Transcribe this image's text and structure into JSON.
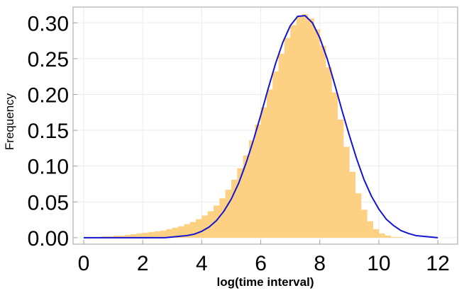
{
  "chart_data": {
    "type": "histogram",
    "x_label": "log(time interval)",
    "y_label": "Frequency",
    "bins": [
      0,
      0.2,
      0.4,
      0.6,
      0.8,
      1,
      1.2,
      1.4,
      1.6,
      1.8,
      2,
      2.2,
      2.4,
      2.6,
      2.8,
      3,
      3.2,
      3.4,
      3.6,
      3.8,
      4,
      4.2,
      4.4,
      4.6,
      4.8,
      5,
      5.2,
      5.4,
      5.6,
      5.8,
      6,
      6.2,
      6.4,
      6.6,
      6.8,
      7,
      7.2,
      7.4,
      7.6,
      7.8,
      8,
      8.2,
      8.4,
      8.6,
      8.8,
      9,
      9.2,
      9.4,
      9.6,
      9.8,
      10,
      10.2,
      10.4,
      10.6,
      10.8,
      11
    ],
    "values": [
      0.001,
      0.001,
      0.001,
      0.002,
      0.002,
      0.003,
      0.003,
      0.004,
      0.005,
      0.006,
      0.007,
      0.008,
      0.009,
      0.01,
      0.012,
      0.014,
      0.016,
      0.019,
      0.022,
      0.026,
      0.031,
      0.037,
      0.045,
      0.055,
      0.067,
      0.081,
      0.097,
      0.115,
      0.136,
      0.158,
      0.182,
      0.207,
      0.232,
      0.257,
      0.279,
      0.297,
      0.309,
      0.312,
      0.306,
      0.291,
      0.268,
      0.238,
      0.203,
      0.165,
      0.127,
      0.092,
      0.062,
      0.039,
      0.023,
      0.012,
      0.006,
      0.003,
      0.001,
      0.001,
      0
    ],
    "color": "#fdd183",
    "curve": {
      "type": "line",
      "color": "#1414d4",
      "x": [
        0,
        0.25,
        0.5,
        0.75,
        1,
        1.25,
        1.5,
        1.75,
        2,
        2.25,
        2.5,
        2.75,
        3,
        3.25,
        3.5,
        3.75,
        4,
        4.25,
        4.5,
        4.75,
        5,
        5.25,
        5.5,
        5.75,
        6,
        6.25,
        6.5,
        6.75,
        7,
        7.25,
        7.5,
        7.75,
        8,
        8.25,
        8.5,
        8.75,
        9,
        9.25,
        9.5,
        9.75,
        10,
        10.25,
        10.5,
        10.75,
        11,
        11.25,
        11.5,
        11.75,
        12
      ],
      "values": [
        0,
        0,
        0,
        0,
        0,
        0,
        0,
        0,
        0,
        0,
        0,
        0,
        0.001,
        0.002,
        0.003,
        0.005,
        0.009,
        0.015,
        0.024,
        0.037,
        0.054,
        0.076,
        0.104,
        0.136,
        0.171,
        0.208,
        0.243,
        0.273,
        0.296,
        0.309,
        0.31,
        0.3,
        0.279,
        0.25,
        0.215,
        0.178,
        0.143,
        0.11,
        0.081,
        0.058,
        0.04,
        0.026,
        0.017,
        0.01,
        0.006,
        0.003,
        0.002,
        0.001,
        0
      ]
    },
    "xlim": [
      -0.36,
      12.67
    ],
    "ylim": [
      -0.009,
      0.322
    ],
    "xticks": [
      0,
      2,
      4,
      6,
      8,
      10,
      12
    ],
    "yticks": [
      {
        "value": 0,
        "label": "0.00"
      },
      {
        "value": 0.05,
        "label": "0.05"
      },
      {
        "value": 0.1,
        "label": "0.10"
      },
      {
        "value": 0.15,
        "label": "0.15"
      },
      {
        "value": 0.2,
        "label": "0.20"
      },
      {
        "value": 0.25,
        "label": "0.25"
      },
      {
        "value": 0.3,
        "label": "0.30"
      }
    ],
    "grid": true
  }
}
